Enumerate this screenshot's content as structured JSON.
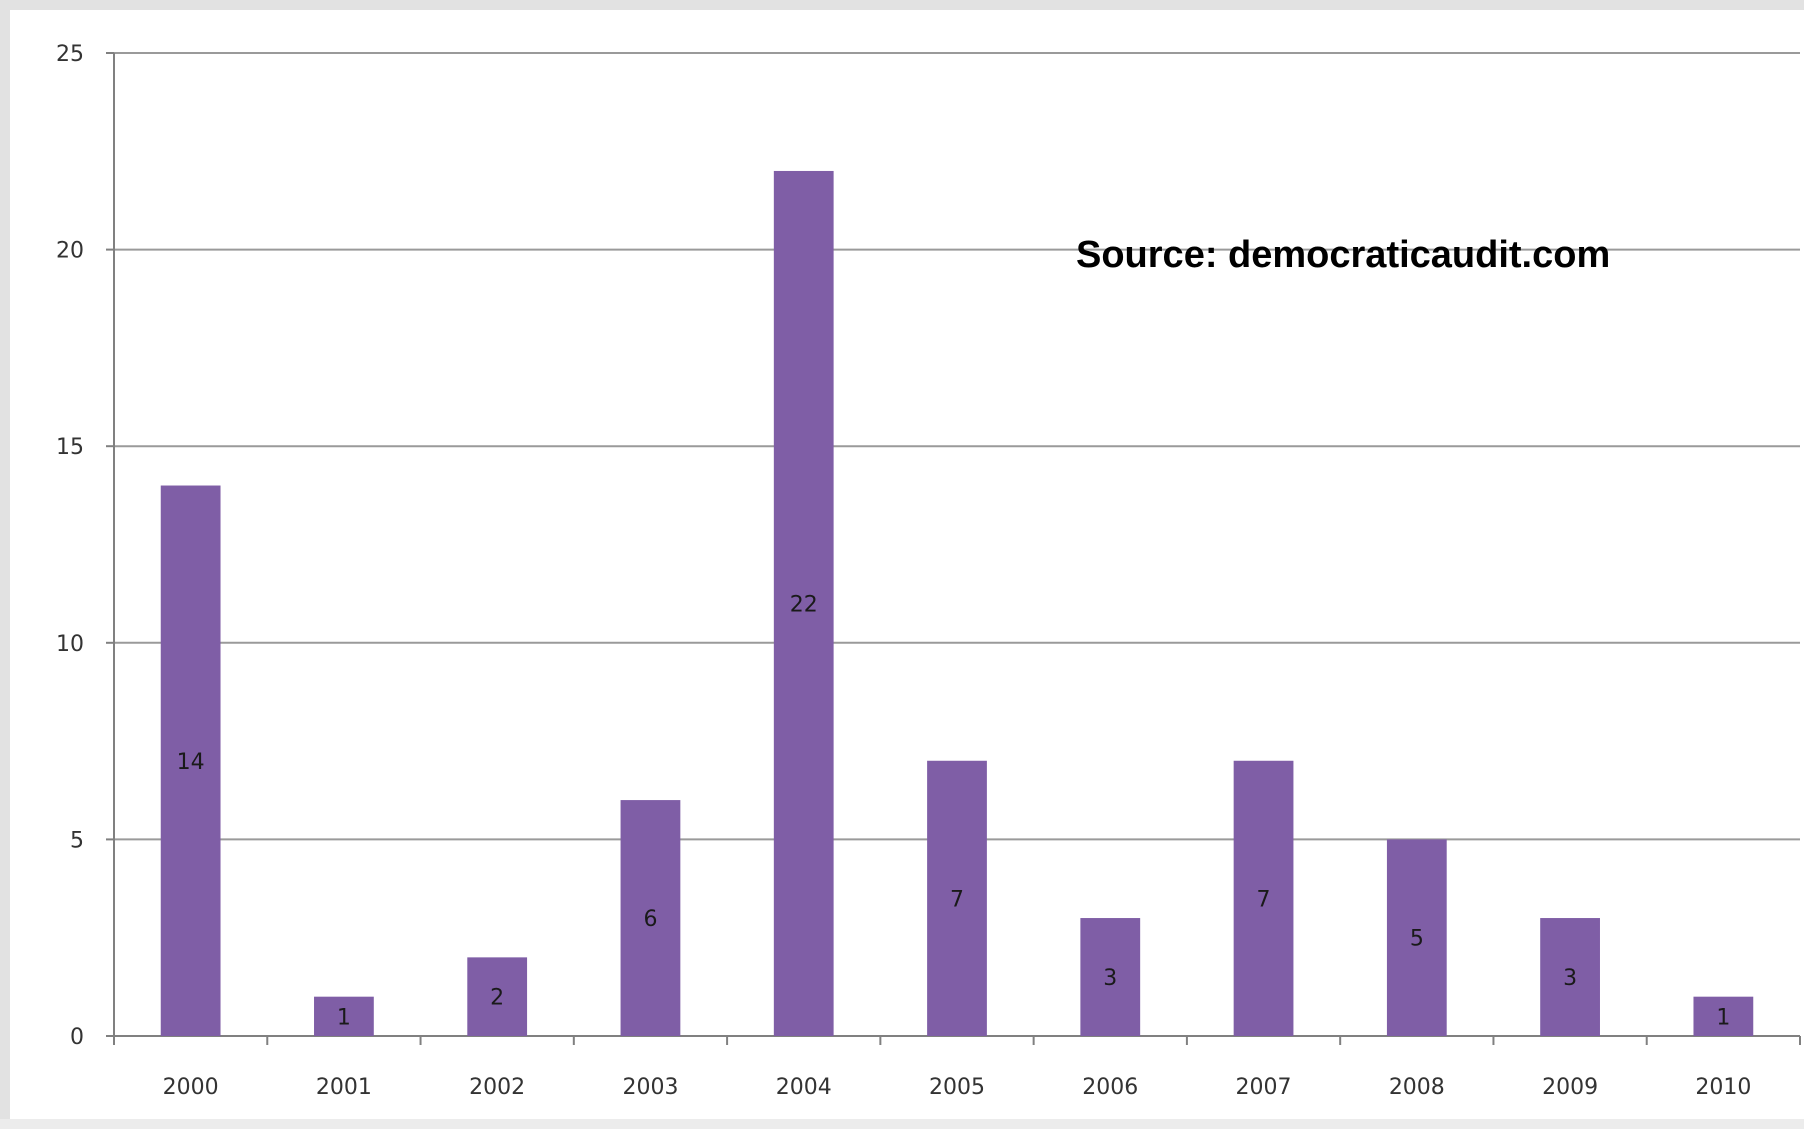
{
  "annotation": "Source: democraticaudit.com",
  "colors": {
    "bar": "#7f5ea6",
    "grid": "#9a9a9a",
    "axis": "#808080"
  },
  "chart_data": {
    "type": "bar",
    "title": "",
    "xlabel": "",
    "ylabel": "",
    "categories": [
      "2000",
      "2001",
      "2002",
      "2003",
      "2004",
      "2005",
      "2006",
      "2007",
      "2008",
      "2009",
      "2010"
    ],
    "values": [
      14,
      1,
      2,
      6,
      22,
      7,
      3,
      7,
      5,
      3,
      1
    ],
    "data_labels": [
      "14",
      "1",
      "2",
      "6",
      "22",
      "7",
      "3",
      "7",
      "5",
      "3",
      "1"
    ],
    "ylim": [
      0,
      25
    ],
    "yticks": [
      "0",
      "5",
      "10",
      "15",
      "20",
      "25"
    ],
    "grid": true,
    "legend": "none"
  }
}
